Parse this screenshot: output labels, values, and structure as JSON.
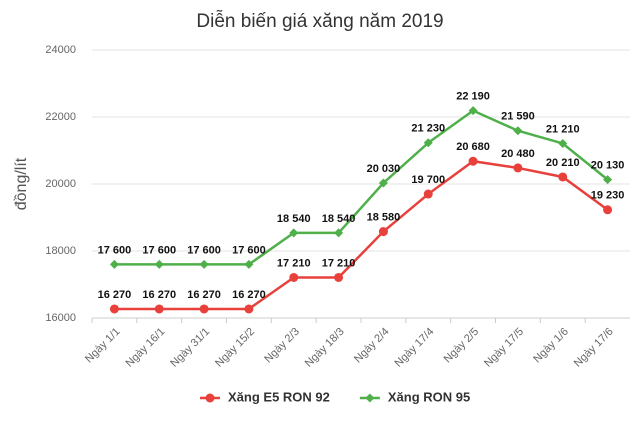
{
  "chart_data": {
    "type": "line",
    "title": "Diễn biến giá xăng năm 2019",
    "y_label": "đồng/lít",
    "categories": [
      "Ngày 1/1",
      "Ngày 16/1",
      "Ngày 31/1",
      "Ngày 15/2",
      "Ngày 2/3",
      "Ngày 18/3",
      "Ngày 2/4",
      "Ngày 17/4",
      "Ngày 2/5",
      "Ngày 17/5",
      "Ngày 1/6",
      "Ngày 17/6"
    ],
    "series": [
      {
        "name": "Xăng E5 RON 92",
        "color": "#e8413c",
        "marker": "circle",
        "values": [
          16270,
          16270,
          16270,
          16270,
          17210,
          17210,
          18580,
          19700,
          20680,
          20480,
          20210,
          19230
        ],
        "value_labels": [
          "16 270",
          "16 270",
          "16 270",
          "16 270",
          "17 210",
          "17 210",
          "18 580",
          "19 700",
          "20 680",
          "20 480",
          "20 210",
          "19 230"
        ]
      },
      {
        "name": "Xăng RON 95",
        "color": "#4fb04a",
        "marker": "diamond",
        "values": [
          17600,
          17600,
          17600,
          17600,
          18540,
          18540,
          20030,
          21230,
          22190,
          21590,
          21210,
          20130
        ],
        "value_labels": [
          "17 600",
          "17 600",
          "17 600",
          "17 600",
          "18 540",
          "18 540",
          "20 030",
          "21 230",
          "22 190",
          "21 590",
          "21 210",
          "20 130"
        ]
      }
    ],
    "ylim": [
      16000,
      24000
    ],
    "yticks": [
      16000,
      18000,
      20000,
      22000,
      24000
    ],
    "grid": true,
    "legend": "bottom"
  }
}
